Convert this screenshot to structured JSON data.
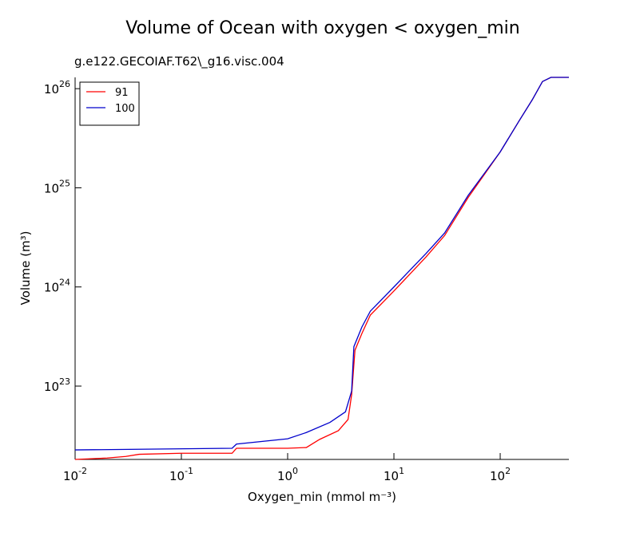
{
  "chart_data": {
    "type": "line",
    "title": "Volume of Ocean with oxygen < oxygen_min",
    "subtitle": "g.e122.GECOIAF.T62\\_g16.visc.004",
    "xlabel": "Oxygen_min (mmol m⁻³)",
    "ylabel": "Volume (m³)",
    "xscale": "log",
    "yscale": "log",
    "xlim": [
      0.01,
      443
    ],
    "ylim": [
      1.82e+22,
      1.3e+26
    ],
    "xticks": [
      {
        "value": 0.01,
        "label": "10",
        "exponent": "-2"
      },
      {
        "value": 0.1,
        "label": "10",
        "exponent": "-1"
      },
      {
        "value": 1,
        "label": "10",
        "exponent": "0"
      },
      {
        "value": 10,
        "label": "10",
        "exponent": "1"
      },
      {
        "value": 100,
        "label": "10",
        "exponent": "2"
      }
    ],
    "yticks": [
      {
        "value": 1e+23,
        "label": "10",
        "exponent": "23"
      },
      {
        "value": 1e+24,
        "label": "10",
        "exponent": "24"
      },
      {
        "value": 1e+25,
        "label": "10",
        "exponent": "25"
      },
      {
        "value": 1e+26,
        "label": "10",
        "exponent": "26"
      }
    ],
    "legend": "upper left",
    "series": [
      {
        "name": "91",
        "color": "#ff0000",
        "x": [
          0.01,
          0.02,
          0.03,
          0.04,
          0.1,
          0.3,
          0.33,
          1,
          1.5,
          2,
          3,
          3.7,
          4,
          4.3,
          5,
          6,
          10,
          20,
          30,
          50,
          100,
          150,
          200,
          250,
          300,
          443
        ],
        "values": [
          1.82e+22,
          1.88e+22,
          1.95e+22,
          2.05e+22,
          2.1e+22,
          2.1e+22,
          2.36e+22,
          2.36e+22,
          2.4e+22,
          2.9e+22,
          3.55e+22,
          4.6e+22,
          8.2e+22,
          2.3e+23,
          3.4e+23,
          5.2e+23,
          9.1e+23,
          2e+24,
          3.3e+24,
          8e+24,
          2.3e+25,
          4.7e+25,
          7.7e+25,
          1.18e+26,
          1.3e+26,
          1.3e+26
        ]
      },
      {
        "name": "100",
        "color": "#0000cc",
        "x": [
          0.01,
          0.3,
          0.33,
          1,
          1.5,
          2.5,
          3.5,
          4,
          4.2,
          5,
          6,
          10,
          20,
          30,
          50,
          100,
          150,
          200,
          250,
          300,
          443
        ],
        "values": [
          2.27e+22,
          2.36e+22,
          2.6e+22,
          2.94e+22,
          3.4e+22,
          4.3e+22,
          5.5e+22,
          8.9e+22,
          2.5e+23,
          3.95e+23,
          5.7e+23,
          1e+24,
          2.17e+24,
          3.5e+24,
          8.4e+24,
          2.3e+25,
          4.7e+25,
          7.7e+25,
          1.18e+26,
          1.3e+26,
          1.3e+26
        ]
      }
    ]
  }
}
